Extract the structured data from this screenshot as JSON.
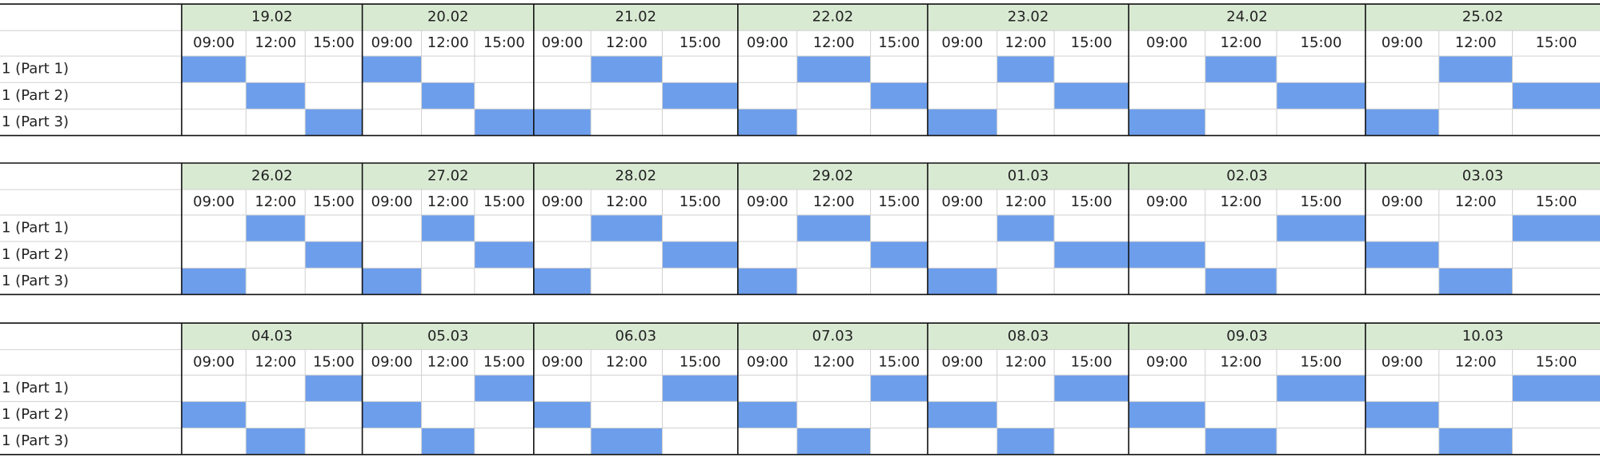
{
  "blocks": [
    {
      "row_labels": [
        "1 (Part 1)",
        "1 (Part 2)",
        "1 (Part 3)"
      ],
      "days": [
        {
          "date": "19.02",
          "times": [
            "09:00",
            "12:00",
            "15:00"
          ],
          "slots": [
            0,
            1,
            2
          ]
        },
        {
          "date": "20.02",
          "times": [
            "09:00",
            "12:00",
            "15:00"
          ],
          "slots": [
            0,
            1,
            2
          ]
        },
        {
          "date": "21.02",
          "times": [
            "09:00",
            "12:00",
            "15:00"
          ],
          "slots": [
            1,
            2,
            0
          ]
        },
        {
          "date": "22.02",
          "times": [
            "09:00",
            "12:00",
            "15:00"
          ],
          "slots": [
            1,
            2,
            0
          ]
        },
        {
          "date": "23.02",
          "times": [
            "09:00",
            "12:00",
            "15:00"
          ],
          "slots": [
            1,
            2,
            0
          ]
        },
        {
          "date": "24.02",
          "times": [
            "09:00",
            "12:00",
            "15:00"
          ],
          "slots": [
            1,
            2,
            0
          ]
        },
        {
          "date": "25.02",
          "times": [
            "09:00",
            "12:00",
            "15:00"
          ],
          "slots": [
            1,
            2,
            0
          ]
        }
      ]
    },
    {
      "row_labels": [
        "1 (Part 1)",
        "1 (Part 2)",
        "1 (Part 3)"
      ],
      "days": [
        {
          "date": "26.02",
          "times": [
            "09:00",
            "12:00",
            "15:00"
          ],
          "slots": [
            1,
            2,
            0
          ]
        },
        {
          "date": "27.02",
          "times": [
            "09:00",
            "12:00",
            "15:00"
          ],
          "slots": [
            1,
            2,
            0
          ]
        },
        {
          "date": "28.02",
          "times": [
            "09:00",
            "12:00",
            "15:00"
          ],
          "slots": [
            1,
            2,
            0
          ]
        },
        {
          "date": "29.02",
          "times": [
            "09:00",
            "12:00",
            "15:00"
          ],
          "slots": [
            1,
            2,
            0
          ]
        },
        {
          "date": "01.03",
          "times": [
            "09:00",
            "12:00",
            "15:00"
          ],
          "slots": [
            1,
            2,
            0
          ]
        },
        {
          "date": "02.03",
          "times": [
            "09:00",
            "12:00",
            "15:00"
          ],
          "slots": [
            2,
            0,
            1
          ]
        },
        {
          "date": "03.03",
          "times": [
            "09:00",
            "12:00",
            "15:00"
          ],
          "slots": [
            2,
            0,
            1
          ]
        }
      ]
    },
    {
      "row_labels": [
        "1 (Part 1)",
        "1 (Part 2)",
        "1 (Part 3)"
      ],
      "days": [
        {
          "date": "04.03",
          "times": [
            "09:00",
            "12:00",
            "15:00"
          ],
          "slots": [
            2,
            0,
            1
          ]
        },
        {
          "date": "05.03",
          "times": [
            "09:00",
            "12:00",
            "15:00"
          ],
          "slots": [
            2,
            0,
            1
          ]
        },
        {
          "date": "06.03",
          "times": [
            "09:00",
            "12:00",
            "15:00"
          ],
          "slots": [
            2,
            0,
            1
          ]
        },
        {
          "date": "07.03",
          "times": [
            "09:00",
            "12:00",
            "15:00"
          ],
          "slots": [
            2,
            0,
            1
          ]
        },
        {
          "date": "08.03",
          "times": [
            "09:00",
            "12:00",
            "15:00"
          ],
          "slots": [
            2,
            0,
            1
          ]
        },
        {
          "date": "09.03",
          "times": [
            "09:00",
            "12:00",
            "15:00"
          ],
          "slots": [
            2,
            0,
            1
          ]
        },
        {
          "date": "10.03",
          "times": [
            "09:00",
            "12:00",
            "15:00"
          ],
          "slots": [
            2,
            0,
            1
          ]
        }
      ]
    }
  ]
}
